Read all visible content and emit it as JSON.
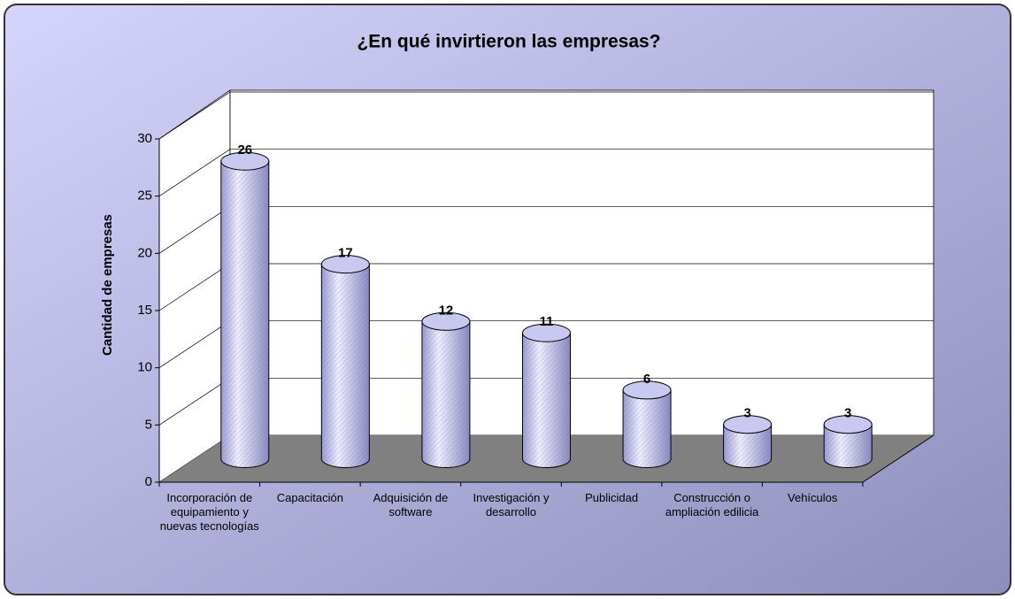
{
  "chart_data": {
    "type": "bar",
    "title": "¿En qué invirtieron las empresas?",
    "y_label": "Cantidad de empresas",
    "categories": [
      "Incorporación de equipamiento y nuevas tecnologías",
      "Capacitación",
      "Adquisición de software",
      "Investigación y desarrollo",
      "Publicidad",
      "Construcción o ampliación edilicia",
      "Vehículos"
    ],
    "values": [
      26,
      17,
      12,
      11,
      6,
      3,
      3
    ],
    "color": "#c8c8f0",
    "ylim": [
      0,
      30
    ],
    "yticks": [
      0,
      5,
      10,
      15,
      20,
      25,
      30
    ],
    "grid": true
  }
}
